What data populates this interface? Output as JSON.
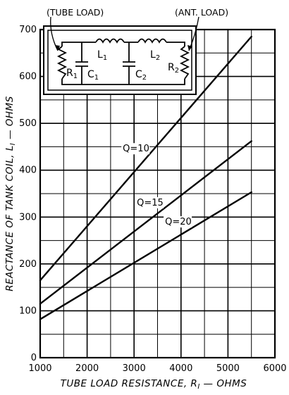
{
  "chart_data": {
    "type": "line",
    "xlabel": "TUBE LOAD RESISTANCE, R",
    "xlabel_sub": "I",
    "xlabel_tail": " — OHMS",
    "ylabel": "REACTANCE OF TANK COIL, L",
    "ylabel_sub": "I",
    "ylabel_tail": " — OHMS",
    "xlim": [
      1000,
      6000
    ],
    "ylim": [
      0,
      700
    ],
    "x_ticks": [
      "1000",
      "2000",
      "3000",
      "4000",
      "5000",
      "6000"
    ],
    "y_ticks": [
      "0",
      "100",
      "200",
      "300",
      "400",
      "500",
      "600",
      "700"
    ],
    "grid": true,
    "series": [
      {
        "name": "Q=10",
        "x": [
          1000,
          5500
        ],
        "y": [
          165,
          685
        ]
      },
      {
        "name": "Q=15",
        "x": [
          1000,
          5500
        ],
        "y": [
          115,
          462
        ]
      },
      {
        "name": "Q=20",
        "x": [
          1000,
          5500
        ],
        "y": [
          82,
          353
        ]
      }
    ]
  },
  "circuit": {
    "tube_load_label": "(TUBE LOAD)",
    "ant_load_label": "(ANT. LOAD)",
    "r1": "R",
    "r1_sub": "1",
    "c1": "C",
    "c1_sub": "1",
    "l1": "L",
    "l1_sub": "1",
    "l2": "L",
    "l2_sub": "2",
    "c2": "C",
    "c2_sub": "2",
    "r2": "R",
    "r2_sub": "2"
  }
}
